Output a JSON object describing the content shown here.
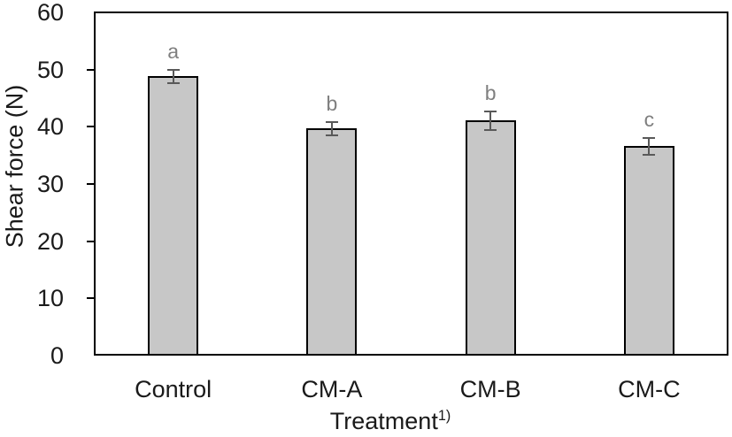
{
  "chart_data": {
    "type": "bar",
    "title": "",
    "categories": [
      "Control",
      "CM-A",
      "CM-B",
      "CM-C"
    ],
    "values": [
      48.8,
      39.7,
      41.1,
      36.6
    ],
    "error_bars": [
      1.1,
      1.2,
      1.6,
      1.5
    ],
    "significance_letters": [
      "a",
      "b",
      "b",
      "c"
    ],
    "xlabel": "Treatment",
    "xlabel_superscript": "1)",
    "ylabel": "Shear force (N)",
    "ylim": [
      0,
      60
    ],
    "yticks": [
      0,
      10,
      20,
      30,
      40,
      50,
      60
    ],
    "grid": false,
    "legend": "none",
    "bar_fill_color": "#c7c7c7",
    "bar_border_color": "#000000",
    "error_bar_color": "#595959",
    "letter_color": "#7f7f7f",
    "axis_color": "#000000",
    "text_color": "#1a1a1a"
  }
}
